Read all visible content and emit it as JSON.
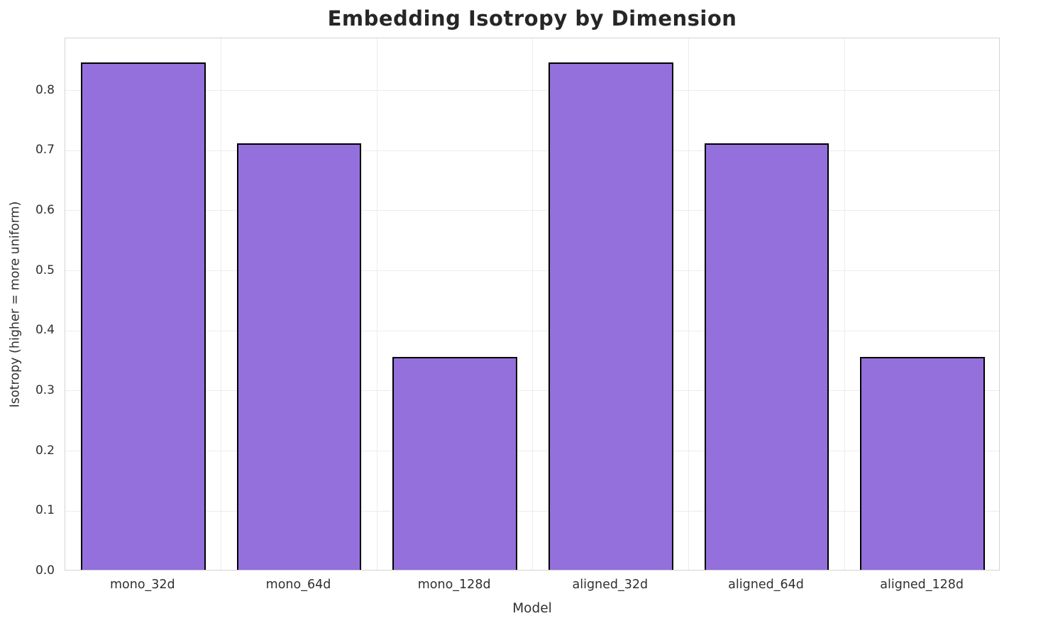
{
  "chart_data": {
    "type": "bar",
    "title": "Embedding Isotropy by Dimension",
    "xlabel": "Model",
    "ylabel": "Isotropy (higher = more uniform)",
    "categories": [
      "mono_32d",
      "mono_64d",
      "mono_128d",
      "aligned_32d",
      "aligned_64d",
      "aligned_128d"
    ],
    "values": [
      0.845,
      0.71,
      0.354,
      0.845,
      0.71,
      0.354
    ],
    "ylim": [
      0,
      0.887
    ],
    "yticks": [
      0.0,
      0.1,
      0.2,
      0.3,
      0.4,
      0.5,
      0.6,
      0.7,
      0.8
    ],
    "ytick_labels": [
      "0.0",
      "0.1",
      "0.2",
      "0.3",
      "0.4",
      "0.5",
      "0.6",
      "0.7",
      "0.8"
    ],
    "grid": true,
    "legend": null,
    "bar_width_frac": 0.8,
    "colors": {
      "bar_fill": "#9370db",
      "bar_edge": "#000000",
      "grid_color": "#ececec",
      "spine_color": "#d3d3d3",
      "text_color": "#303030",
      "title_color": "#262626",
      "background": "#ffffff"
    }
  }
}
